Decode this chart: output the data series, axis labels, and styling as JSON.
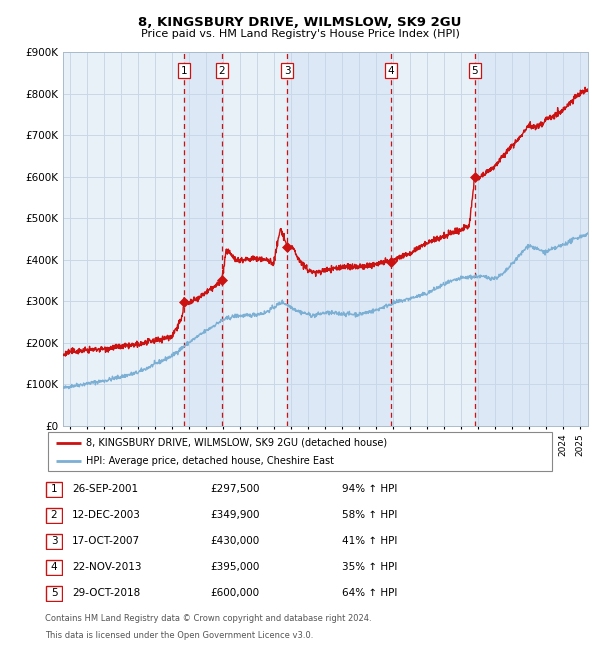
{
  "title": "8, KINGSBURY DRIVE, WILMSLOW, SK9 2GU",
  "subtitle": "Price paid vs. HM Land Registry's House Price Index (HPI)",
  "legend_line1": "8, KINGSBURY DRIVE, WILMSLOW, SK9 2GU (detached house)",
  "legend_line2": "HPI: Average price, detached house, Cheshire East",
  "footer1": "Contains HM Land Registry data © Crown copyright and database right 2024.",
  "footer2": "This data is licensed under the Open Government Licence v3.0.",
  "sales": [
    {
      "num": 1,
      "date_str": "26-SEP-2001",
      "date_dec": 2001.73,
      "price": 297500,
      "pct": "94%",
      "dir": "↑"
    },
    {
      "num": 2,
      "date_str": "12-DEC-2003",
      "date_dec": 2003.95,
      "price": 349900,
      "pct": "58%",
      "dir": "↑"
    },
    {
      "num": 3,
      "date_str": "17-OCT-2007",
      "date_dec": 2007.8,
      "price": 430000,
      "pct": "41%",
      "dir": "↑"
    },
    {
      "num": 4,
      "date_str": "22-NOV-2013",
      "date_dec": 2013.9,
      "price": 395000,
      "pct": "35%",
      "dir": "↑"
    },
    {
      "num": 5,
      "date_str": "29-OCT-2018",
      "date_dec": 2018.83,
      "price": 600000,
      "pct": "64%",
      "dir": "↑"
    }
  ],
  "hpi_color": "#7bafd4",
  "price_color": "#cc1111",
  "sale_marker_color": "#cc1111",
  "vline_color": "#cc1111",
  "shade_color": "#dce8f5",
  "grid_color": "#c8d8e8",
  "plot_bg_color": "#e8f0f8",
  "ylim": [
    0,
    900000
  ],
  "yticks": [
    0,
    100000,
    200000,
    300000,
    400000,
    500000,
    600000,
    700000,
    800000,
    900000
  ],
  "ytick_labels": [
    "£0",
    "£100K",
    "£200K",
    "£300K",
    "£400K",
    "£500K",
    "£600K",
    "£700K",
    "£800K",
    "£900K"
  ],
  "xlim_start": 1994.6,
  "xlim_end": 2025.5
}
